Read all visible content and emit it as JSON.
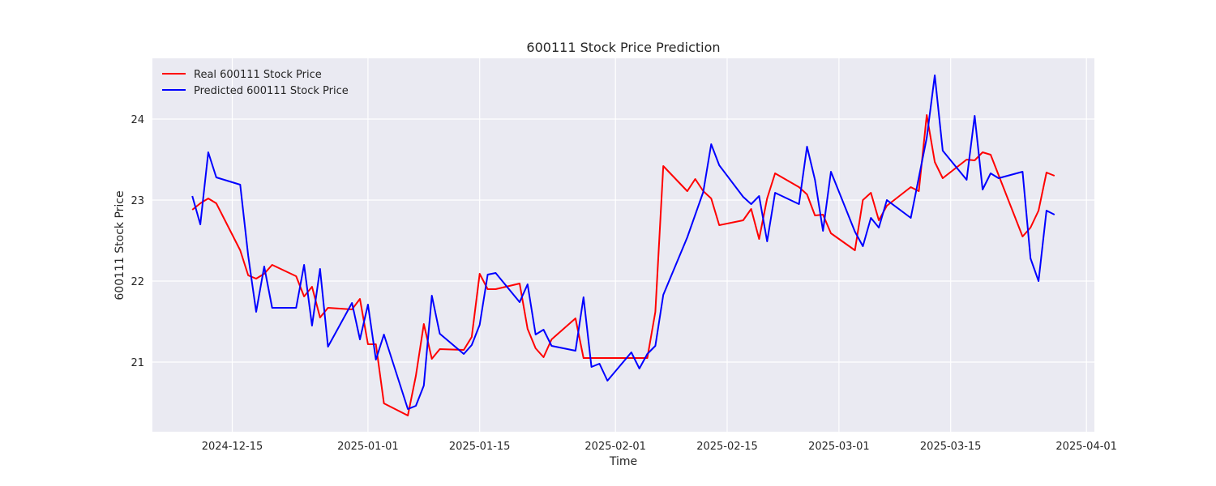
{
  "chart_data": {
    "type": "line",
    "title": "600111 Stock Price Prediction",
    "xlabel": "Time",
    "ylabel": "600111 Stock Price",
    "xlim": [
      "2024-12-05",
      "2025-04-02"
    ],
    "ylim": [
      20.14,
      24.75
    ],
    "x_ticks": [
      "2024-12-15",
      "2025-01-01",
      "2025-01-15",
      "2025-02-01",
      "2025-02-15",
      "2025-03-01",
      "2025-03-15",
      "2025-04-01"
    ],
    "y_ticks": [
      21,
      22,
      23,
      24
    ],
    "grid": true,
    "legend_position": "upper-left",
    "series": [
      {
        "name": "Real 600111 Stock Price",
        "color": "#ff0000",
        "points": [
          [
            "2024-12-10",
            22.88
          ],
          [
            "2024-12-11",
            22.96
          ],
          [
            "2024-12-12",
            23.02
          ],
          [
            "2024-12-13",
            22.96
          ],
          [
            "2024-12-16",
            22.38
          ],
          [
            "2024-12-17",
            22.07
          ],
          [
            "2024-12-18",
            22.03
          ],
          [
            "2024-12-19",
            22.09
          ],
          [
            "2024-12-20",
            22.2
          ],
          [
            "2024-12-23",
            22.06
          ],
          [
            "2024-12-24",
            21.81
          ],
          [
            "2024-12-25",
            21.93
          ],
          [
            "2024-12-26",
            21.55
          ],
          [
            "2024-12-27",
            21.67
          ],
          [
            "2024-12-30",
            21.65
          ],
          [
            "2024-12-31",
            21.78
          ],
          [
            "2025-01-01",
            21.22
          ],
          [
            "2025-01-02",
            21.22
          ],
          [
            "2025-01-03",
            20.49
          ],
          [
            "2025-01-06",
            20.34
          ],
          [
            "2025-01-07",
            20.83
          ],
          [
            "2025-01-08",
            21.47
          ],
          [
            "2025-01-09",
            21.04
          ],
          [
            "2025-01-10",
            21.16
          ],
          [
            "2025-01-13",
            21.15
          ],
          [
            "2025-01-14",
            21.31
          ],
          [
            "2025-01-15",
            22.09
          ],
          [
            "2025-01-16",
            21.9
          ],
          [
            "2025-01-17",
            21.9
          ],
          [
            "2025-01-20",
            21.97
          ],
          [
            "2025-01-21",
            21.41
          ],
          [
            "2025-01-22",
            21.17
          ],
          [
            "2025-01-23",
            21.06
          ],
          [
            "2025-01-24",
            21.28
          ],
          [
            "2025-01-27",
            21.54
          ],
          [
            "2025-01-28",
            21.05
          ],
          [
            "2025-01-29",
            21.05
          ],
          [
            "2025-02-03",
            21.05
          ],
          [
            "2025-02-05",
            21.05
          ],
          [
            "2025-02-06",
            21.62
          ],
          [
            "2025-02-07",
            23.42
          ],
          [
            "2025-02-10",
            23.11
          ],
          [
            "2025-02-11",
            23.26
          ],
          [
            "2025-02-12",
            23.11
          ],
          [
            "2025-02-13",
            23.02
          ],
          [
            "2025-02-14",
            22.69
          ],
          [
            "2025-02-17",
            22.75
          ],
          [
            "2025-02-18",
            22.89
          ],
          [
            "2025-02-19",
            22.52
          ],
          [
            "2025-02-20",
            23.02
          ],
          [
            "2025-02-21",
            23.33
          ],
          [
            "2025-02-24",
            23.16
          ],
          [
            "2025-02-25",
            23.07
          ],
          [
            "2025-02-26",
            22.81
          ],
          [
            "2025-02-27",
            22.82
          ],
          [
            "2025-02-28",
            22.59
          ],
          [
            "2025-03-03",
            22.38
          ],
          [
            "2025-03-04",
            23.0
          ],
          [
            "2025-03-05",
            23.09
          ],
          [
            "2025-03-06",
            22.75
          ],
          [
            "2025-03-07",
            22.93
          ],
          [
            "2025-03-10",
            23.16
          ],
          [
            "2025-03-11",
            23.11
          ],
          [
            "2025-03-12",
            24.05
          ],
          [
            "2025-03-13",
            23.47
          ],
          [
            "2025-03-14",
            23.27
          ],
          [
            "2025-03-17",
            23.5
          ],
          [
            "2025-03-18",
            23.49
          ],
          [
            "2025-03-19",
            23.59
          ],
          [
            "2025-03-20",
            23.56
          ],
          [
            "2025-03-24",
            22.55
          ],
          [
            "2025-03-25",
            22.66
          ],
          [
            "2025-03-26",
            22.87
          ],
          [
            "2025-03-27",
            23.34
          ],
          [
            "2025-03-28",
            23.3
          ]
        ]
      },
      {
        "name": "Predicted 600111 Stock Price",
        "color": "#0000ff",
        "points": [
          [
            "2024-12-10",
            23.05
          ],
          [
            "2024-12-11",
            22.7
          ],
          [
            "2024-12-12",
            23.59
          ],
          [
            "2024-12-13",
            23.28
          ],
          [
            "2024-12-16",
            23.19
          ],
          [
            "2024-12-17",
            22.31
          ],
          [
            "2024-12-18",
            21.62
          ],
          [
            "2024-12-19",
            22.18
          ],
          [
            "2024-12-20",
            21.67
          ],
          [
            "2024-12-23",
            21.67
          ],
          [
            "2024-12-24",
            22.2
          ],
          [
            "2024-12-25",
            21.45
          ],
          [
            "2024-12-26",
            22.15
          ],
          [
            "2024-12-27",
            21.19
          ],
          [
            "2024-12-30",
            21.73
          ],
          [
            "2024-12-31",
            21.28
          ],
          [
            "2025-01-01",
            21.71
          ],
          [
            "2025-01-02",
            21.03
          ],
          [
            "2025-01-03",
            21.34
          ],
          [
            "2025-01-06",
            20.42
          ],
          [
            "2025-01-07",
            20.46
          ],
          [
            "2025-01-08",
            20.71
          ],
          [
            "2025-01-09",
            21.82
          ],
          [
            "2025-01-10",
            21.35
          ],
          [
            "2025-01-13",
            21.1
          ],
          [
            "2025-01-14",
            21.21
          ],
          [
            "2025-01-15",
            21.46
          ],
          [
            "2025-01-16",
            22.08
          ],
          [
            "2025-01-17",
            22.1
          ],
          [
            "2025-01-20",
            21.74
          ],
          [
            "2025-01-21",
            21.96
          ],
          [
            "2025-01-22",
            21.34
          ],
          [
            "2025-01-23",
            21.4
          ],
          [
            "2025-01-24",
            21.2
          ],
          [
            "2025-01-27",
            21.14
          ],
          [
            "2025-01-28",
            21.8
          ],
          [
            "2025-01-29",
            20.94
          ],
          [
            "2025-01-30",
            20.98
          ],
          [
            "2025-01-31",
            20.77
          ],
          [
            "2025-02-03",
            21.12
          ],
          [
            "2025-02-04",
            20.92
          ],
          [
            "2025-02-05",
            21.1
          ],
          [
            "2025-02-06",
            21.2
          ],
          [
            "2025-02-07",
            21.83
          ],
          [
            "2025-02-10",
            22.54
          ],
          [
            "2025-02-12",
            23.1
          ],
          [
            "2025-02-13",
            23.69
          ],
          [
            "2025-02-14",
            23.43
          ],
          [
            "2025-02-17",
            23.04
          ],
          [
            "2025-02-18",
            22.95
          ],
          [
            "2025-02-19",
            23.05
          ],
          [
            "2025-02-20",
            22.49
          ],
          [
            "2025-02-21",
            23.09
          ],
          [
            "2025-02-24",
            22.95
          ],
          [
            "2025-02-25",
            23.66
          ],
          [
            "2025-02-26",
            23.25
          ],
          [
            "2025-02-27",
            22.62
          ],
          [
            "2025-02-28",
            23.35
          ],
          [
            "2025-03-03",
            22.61
          ],
          [
            "2025-03-04",
            22.43
          ],
          [
            "2025-03-05",
            22.78
          ],
          [
            "2025-03-06",
            22.66
          ],
          [
            "2025-03-07",
            23.0
          ],
          [
            "2025-03-10",
            22.78
          ],
          [
            "2025-03-12",
            23.77
          ],
          [
            "2025-03-13",
            24.54
          ],
          [
            "2025-03-14",
            23.61
          ],
          [
            "2025-03-17",
            23.25
          ],
          [
            "2025-03-18",
            24.04
          ],
          [
            "2025-03-19",
            23.13
          ],
          [
            "2025-03-20",
            23.33
          ],
          [
            "2025-03-21",
            23.27
          ],
          [
            "2025-03-24",
            23.35
          ],
          [
            "2025-03-25",
            22.28
          ],
          [
            "2025-03-26",
            22.0
          ],
          [
            "2025-03-27",
            22.87
          ],
          [
            "2025-03-28",
            22.82
          ]
        ]
      }
    ]
  }
}
